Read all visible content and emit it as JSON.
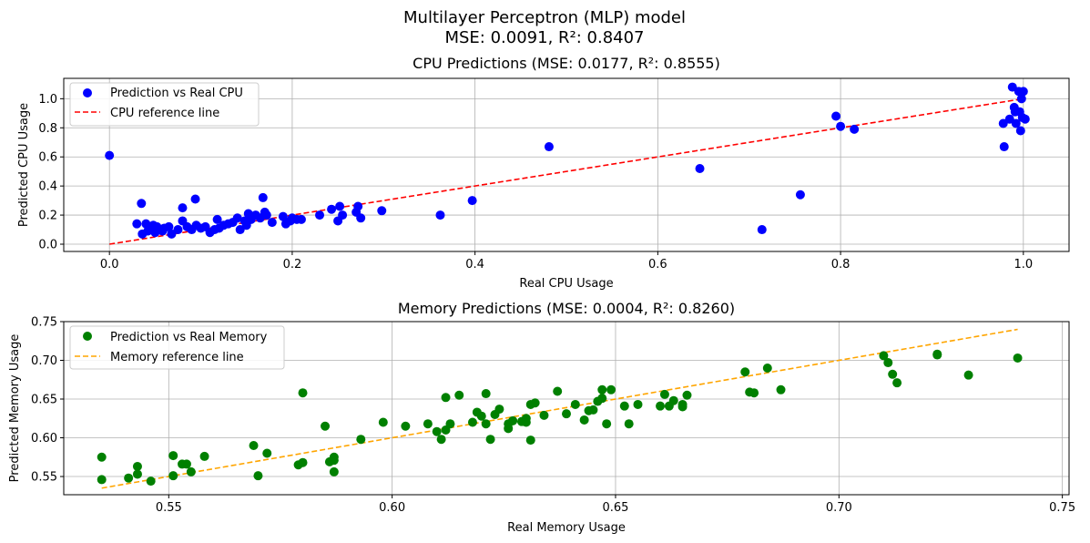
{
  "figure": {
    "title_line1": "Multilayer Perceptron (MLP) model",
    "title_line2": "MSE: 0.0091, R²: 0.8407"
  },
  "chart_data": [
    {
      "type": "scatter",
      "title": "CPU Predictions (MSE: 0.0177, R²: 0.8555)",
      "xlabel": "Real CPU Usage",
      "ylabel": "Predicted CPU Usage",
      "xlim": [
        -0.05,
        1.05
      ],
      "ylim": [
        -0.05,
        1.14
      ],
      "xticks": [
        0.0,
        0.2,
        0.4,
        0.6,
        0.8,
        1.0
      ],
      "xtick_labels": [
        "0.0",
        "0.2",
        "0.4",
        "0.6",
        "0.8",
        "1.0"
      ],
      "yticks": [
        0.0,
        0.2,
        0.4,
        0.6,
        0.8,
        1.0
      ],
      "ytick_labels": [
        "0.0",
        "0.2",
        "0.4",
        "0.6",
        "0.8",
        "1.0"
      ],
      "grid": true,
      "legend_position": "upper-left",
      "series": [
        {
          "name": "Prediction vs Real CPU",
          "kind": "scatter",
          "color": "#0000ff",
          "points": [
            [
              0.0,
              0.61
            ],
            [
              0.03,
              0.14
            ],
            [
              0.035,
              0.28
            ],
            [
              0.036,
              0.07
            ],
            [
              0.04,
              0.14
            ],
            [
              0.042,
              0.09
            ],
            [
              0.045,
              0.11
            ],
            [
              0.048,
              0.13
            ],
            [
              0.05,
              0.08
            ],
            [
              0.052,
              0.12
            ],
            [
              0.055,
              0.1
            ],
            [
              0.058,
              0.09
            ],
            [
              0.06,
              0.11
            ],
            [
              0.065,
              0.12
            ],
            [
              0.068,
              0.07
            ],
            [
              0.075,
              0.1
            ],
            [
              0.08,
              0.16
            ],
            [
              0.08,
              0.25
            ],
            [
              0.085,
              0.12
            ],
            [
              0.09,
              0.1
            ],
            [
              0.094,
              0.31
            ],
            [
              0.095,
              0.13
            ],
            [
              0.1,
              0.11
            ],
            [
              0.105,
              0.12
            ],
            [
              0.11,
              0.08
            ],
            [
              0.115,
              0.1
            ],
            [
              0.118,
              0.17
            ],
            [
              0.12,
              0.11
            ],
            [
              0.125,
              0.13
            ],
            [
              0.13,
              0.14
            ],
            [
              0.135,
              0.15
            ],
            [
              0.14,
              0.18
            ],
            [
              0.143,
              0.1
            ],
            [
              0.148,
              0.16
            ],
            [
              0.15,
              0.13
            ],
            [
              0.152,
              0.21
            ],
            [
              0.155,
              0.17
            ],
            [
              0.16,
              0.2
            ],
            [
              0.165,
              0.18
            ],
            [
              0.168,
              0.32
            ],
            [
              0.17,
              0.22
            ],
            [
              0.172,
              0.2
            ],
            [
              0.178,
              0.15
            ],
            [
              0.19,
              0.19
            ],
            [
              0.193,
              0.14
            ],
            [
              0.198,
              0.16
            ],
            [
              0.2,
              0.18
            ],
            [
              0.205,
              0.17
            ],
            [
              0.21,
              0.17
            ],
            [
              0.23,
              0.2
            ],
            [
              0.243,
              0.24
            ],
            [
              0.25,
              0.16
            ],
            [
              0.252,
              0.26
            ],
            [
              0.255,
              0.2
            ],
            [
              0.27,
              0.22
            ],
            [
              0.272,
              0.26
            ],
            [
              0.275,
              0.18
            ],
            [
              0.298,
              0.23
            ],
            [
              0.362,
              0.2
            ],
            [
              0.397,
              0.3
            ],
            [
              0.481,
              0.67
            ],
            [
              0.646,
              0.52
            ],
            [
              0.714,
              0.1
            ],
            [
              0.756,
              0.34
            ],
            [
              0.795,
              0.88
            ],
            [
              0.8,
              0.81
            ],
            [
              0.815,
              0.79
            ],
            [
              0.978,
              0.83
            ],
            [
              0.979,
              0.67
            ],
            [
              0.985,
              0.86
            ],
            [
              0.988,
              1.08
            ],
            [
              0.99,
              0.94
            ],
            [
              0.991,
              0.91
            ],
            [
              0.992,
              0.83
            ],
            [
              0.995,
              1.05
            ],
            [
              0.996,
              0.91
            ],
            [
              0.997,
              0.78
            ],
            [
              0.998,
              1.0
            ],
            [
              0.999,
              0.87
            ],
            [
              1.0,
              1.05
            ],
            [
              1.002,
              0.86
            ]
          ]
        },
        {
          "name": "CPU reference line",
          "kind": "dashed-line",
          "color": "#ff0000",
          "points": [
            [
              0.0,
              0.0
            ],
            [
              1.0,
              1.0
            ]
          ]
        }
      ]
    },
    {
      "type": "scatter",
      "title": "Memory Predictions (MSE: 0.0004, R²: 0.8260)",
      "xlabel": "Real Memory Usage",
      "ylabel": "Predicted Memory Usage",
      "xlim": [
        0.5265,
        0.7515
      ],
      "ylim": [
        0.5265,
        0.75
      ],
      "xticks": [
        0.55,
        0.6,
        0.65,
        0.7,
        0.75
      ],
      "xtick_labels": [
        "0.55",
        "0.60",
        "0.65",
        "0.70",
        "0.75"
      ],
      "yticks": [
        0.55,
        0.6,
        0.65,
        0.7,
        0.75
      ],
      "ytick_labels": [
        "0.55",
        "0.60",
        "0.65",
        "0.70",
        "0.75"
      ],
      "grid": true,
      "legend_position": "upper-left",
      "series": [
        {
          "name": "Prediction vs Real Memory",
          "kind": "scatter",
          "color": "#008000",
          "points": [
            [
              0.535,
              0.546
            ],
            [
              0.535,
              0.575
            ],
            [
              0.541,
              0.548
            ],
            [
              0.543,
              0.563
            ],
            [
              0.543,
              0.553
            ],
            [
              0.546,
              0.544
            ],
            [
              0.551,
              0.577
            ],
            [
              0.551,
              0.551
            ],
            [
              0.553,
              0.566
            ],
            [
              0.554,
              0.566
            ],
            [
              0.555,
              0.556
            ],
            [
              0.558,
              0.576
            ],
            [
              0.569,
              0.59
            ],
            [
              0.57,
              0.551
            ],
            [
              0.572,
              0.58
            ],
            [
              0.579,
              0.565
            ],
            [
              0.58,
              0.568
            ],
            [
              0.58,
              0.658
            ],
            [
              0.585,
              0.615
            ],
            [
              0.586,
              0.569
            ],
            [
              0.587,
              0.556
            ],
            [
              0.587,
              0.571
            ],
            [
              0.587,
              0.575
            ],
            [
              0.593,
              0.598
            ],
            [
              0.598,
              0.62
            ],
            [
              0.603,
              0.615
            ],
            [
              0.608,
              0.618
            ],
            [
              0.61,
              0.608
            ],
            [
              0.611,
              0.598
            ],
            [
              0.612,
              0.652
            ],
            [
              0.612,
              0.61
            ],
            [
              0.613,
              0.618
            ],
            [
              0.615,
              0.655
            ],
            [
              0.618,
              0.62
            ],
            [
              0.619,
              0.633
            ],
            [
              0.62,
              0.628
            ],
            [
              0.621,
              0.618
            ],
            [
              0.621,
              0.657
            ],
            [
              0.622,
              0.598
            ],
            [
              0.623,
              0.63
            ],
            [
              0.624,
              0.637
            ],
            [
              0.626,
              0.618
            ],
            [
              0.626,
              0.612
            ],
            [
              0.627,
              0.622
            ],
            [
              0.629,
              0.621
            ],
            [
              0.63,
              0.62
            ],
            [
              0.63,
              0.625
            ],
            [
              0.631,
              0.643
            ],
            [
              0.631,
              0.597
            ],
            [
              0.632,
              0.645
            ],
            [
              0.634,
              0.629
            ],
            [
              0.637,
              0.66
            ],
            [
              0.639,
              0.631
            ],
            [
              0.641,
              0.643
            ],
            [
              0.643,
              0.623
            ],
            [
              0.644,
              0.635
            ],
            [
              0.645,
              0.636
            ],
            [
              0.646,
              0.647
            ],
            [
              0.647,
              0.651
            ],
            [
              0.647,
              0.662
            ],
            [
              0.648,
              0.618
            ],
            [
              0.649,
              0.662
            ],
            [
              0.652,
              0.641
            ],
            [
              0.653,
              0.618
            ],
            [
              0.655,
              0.643
            ],
            [
              0.66,
              0.641
            ],
            [
              0.661,
              0.656
            ],
            [
              0.662,
              0.641
            ],
            [
              0.663,
              0.648
            ],
            [
              0.665,
              0.643
            ],
            [
              0.665,
              0.64
            ],
            [
              0.666,
              0.655
            ],
            [
              0.679,
              0.685
            ],
            [
              0.68,
              0.659
            ],
            [
              0.681,
              0.658
            ],
            [
              0.684,
              0.69
            ],
            [
              0.687,
              0.662
            ],
            [
              0.71,
              0.706
            ],
            [
              0.711,
              0.697
            ],
            [
              0.712,
              0.682
            ],
            [
              0.713,
              0.671
            ],
            [
              0.722,
              0.708
            ],
            [
              0.722,
              0.707
            ],
            [
              0.729,
              0.681
            ],
            [
              0.74,
              0.703
            ]
          ]
        },
        {
          "name": "Memory reference line",
          "kind": "dashed-line",
          "color": "#ffa500",
          "points": [
            [
              0.535,
              0.535
            ],
            [
              0.74,
              0.74
            ]
          ]
        }
      ]
    }
  ]
}
